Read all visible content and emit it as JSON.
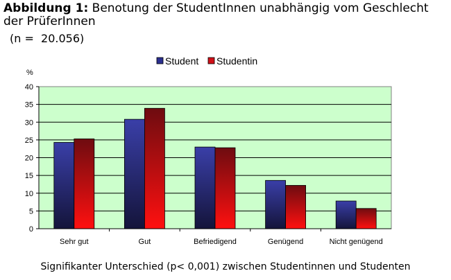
{
  "title_prefix": "Abbildung 1:",
  "title_text": "Benotung der StudentInnen unabhängig vom Geschlecht der PrüferInnen",
  "n_label": "(n =  20.056)",
  "footer_note": "Signifikanter Unterschied (p< 0,001) zwischen Studentinnen und Studenten",
  "chart_data": {
    "type": "bar",
    "ylabel": "%",
    "ylim": [
      0,
      40
    ],
    "yticks": [
      "0",
      "5",
      "10",
      "15",
      "20",
      "25",
      "30",
      "35",
      "40"
    ],
    "categories": [
      "Sehr gut",
      "Gut",
      "Befriedigend",
      "Genügend",
      "Nicht genügend"
    ],
    "series": [
      {
        "name": "Student",
        "values": [
          24.3,
          30.8,
          23.0,
          13.6,
          7.8
        ],
        "color": "#2b2f8f"
      },
      {
        "name": "Studentin",
        "values": [
          25.3,
          33.9,
          22.8,
          12.2,
          5.7
        ],
        "color": "#b0121a"
      }
    ],
    "grid": true,
    "legend": "top-center",
    "plot_background": "#ccffcc"
  }
}
